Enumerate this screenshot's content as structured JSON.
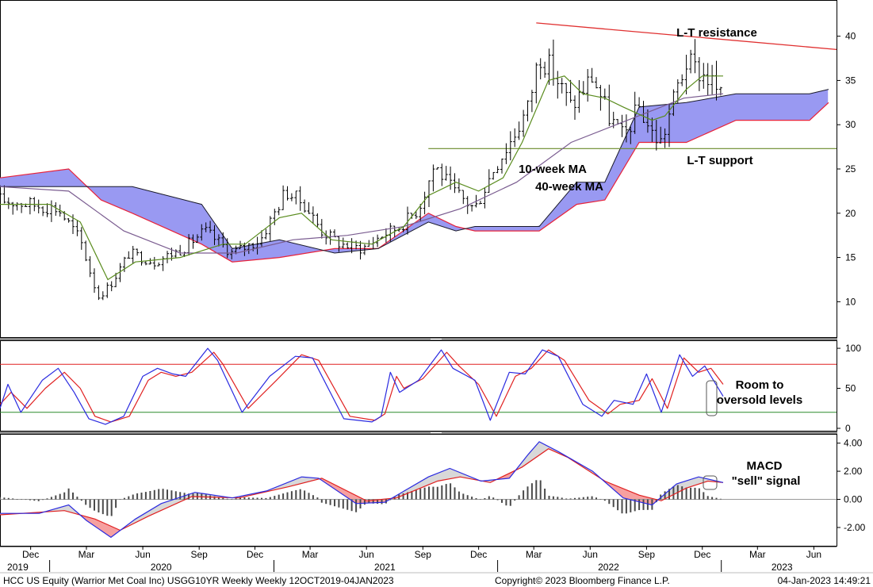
{
  "chart_data": [
    {
      "type": "candlestick",
      "panel": "price",
      "ylim": [
        6,
        44
      ],
      "yticks": [
        "10",
        "15",
        "20",
        "25",
        "30",
        "35",
        "40"
      ],
      "grid": false,
      "x_start": "2019-10-12",
      "x_end": "2023-07-08",
      "price_path": [
        [
          "2019-10-12",
          21.5
        ],
        [
          "2019-12-01",
          21
        ],
        [
          "2020-01-15",
          20.5
        ],
        [
          "2020-02-20",
          17
        ],
        [
          "2020-03-20",
          10.5
        ],
        [
          "2020-04-10",
          12
        ],
        [
          "2020-05-10",
          15.5
        ],
        [
          "2020-06-20",
          14.5
        ],
        [
          "2020-08-05",
          16
        ],
        [
          "2020-09-10",
          18
        ],
        [
          "2020-10-25",
          15.5
        ],
        [
          "2020-12-10",
          17
        ],
        [
          "2021-01-20",
          22.5
        ],
        [
          "2021-02-20",
          21
        ],
        [
          "2021-03-20",
          18
        ],
        [
          "2021-04-20",
          16.5
        ],
        [
          "2021-05-25",
          16
        ],
        [
          "2021-06-25",
          17.5
        ],
        [
          "2021-07-25",
          18.5
        ],
        [
          "2021-08-25",
          20.5
        ],
        [
          "2021-09-20",
          25.5
        ],
        [
          "2021-10-20",
          22.5
        ],
        [
          "2021-11-25",
          20.5
        ],
        [
          "2021-12-25",
          25
        ],
        [
          "2022-01-25",
          28.5
        ],
        [
          "2022-02-20",
          32
        ],
        [
          "2022-03-10",
          38
        ],
        [
          "2022-04-01",
          36
        ],
        [
          "2022-05-01",
          32
        ],
        [
          "2022-06-05",
          35.5
        ],
        [
          "2022-07-01",
          31
        ],
        [
          "2022-07-25",
          28.5
        ],
        [
          "2022-08-20",
          32
        ],
        [
          "2022-09-10",
          29
        ],
        [
          "2022-09-25",
          28
        ],
        [
          "2022-10-20",
          34
        ],
        [
          "2022-11-05",
          37
        ],
        [
          "2022-11-25",
          36
        ],
        [
          "2022-12-15",
          35
        ],
        [
          "2023-01-04",
          32.5
        ]
      ],
      "ma10_path": [
        [
          "2019-10-12",
          21
        ],
        [
          "2020-01-01",
          21
        ],
        [
          "2020-02-20",
          19
        ],
        [
          "2020-04-05",
          12.5
        ],
        [
          "2020-05-20",
          14.5
        ],
        [
          "2020-08-01",
          15
        ],
        [
          "2020-10-10",
          16.5
        ],
        [
          "2020-11-15",
          16.5
        ],
        [
          "2021-01-10",
          19.5
        ],
        [
          "2021-02-15",
          20
        ],
        [
          "2021-04-05",
          17
        ],
        [
          "2021-06-10",
          16.5
        ],
        [
          "2021-08-01",
          18.5
        ],
        [
          "2021-09-10",
          22
        ],
        [
          "2021-10-25",
          23.5
        ],
        [
          "2021-12-01",
          22.5
        ],
        [
          "2022-01-10",
          24
        ],
        [
          "2022-02-10",
          28
        ],
        [
          "2022-03-25",
          35
        ],
        [
          "2022-04-20",
          35.5
        ],
        [
          "2022-05-20",
          33.5
        ],
        [
          "2022-06-25",
          33
        ],
        [
          "2022-07-25",
          32
        ],
        [
          "2022-09-10",
          30.5
        ],
        [
          "2022-10-01",
          31
        ],
        [
          "2022-11-05",
          34
        ],
        [
          "2022-12-01",
          35.5
        ],
        [
          "2023-01-04",
          35.5
        ]
      ],
      "ma40_path": [
        [
          "2019-10-12",
          23
        ],
        [
          "2020-02-01",
          22.5
        ],
        [
          "2020-05-01",
          18
        ],
        [
          "2020-08-01",
          15.5
        ],
        [
          "2020-11-01",
          15.5
        ],
        [
          "2021-02-01",
          17
        ],
        [
          "2021-05-01",
          17.5
        ],
        [
          "2021-08-01",
          18.5
        ],
        [
          "2021-11-01",
          20.5
        ],
        [
          "2022-02-01",
          23.5
        ],
        [
          "2022-05-01",
          28
        ],
        [
          "2022-08-01",
          30.5
        ],
        [
          "2022-11-01",
          33
        ],
        [
          "2023-01-04",
          33.5
        ]
      ],
      "cloud_a": [
        [
          "2019-10-12",
          23
        ],
        [
          "2020-03-25",
          23
        ],
        [
          "2020-05-15",
          23
        ],
        [
          "2020-09-05",
          21
        ],
        [
          "2020-10-25",
          16
        ],
        [
          "2021-01-10",
          17
        ],
        [
          "2021-04-10",
          15.5
        ],
        [
          "2021-06-20",
          16
        ],
        [
          "2021-09-10",
          19
        ],
        [
          "2021-10-25",
          18
        ],
        [
          "2021-11-25",
          18.5
        ],
        [
          "2022-03-10",
          18.5
        ],
        [
          "2022-05-10",
          23.5
        ],
        [
          "2022-06-25",
          23.5
        ],
        [
          "2022-08-20",
          32
        ],
        [
          "2022-11-05",
          32.5
        ],
        [
          "2023-01-25",
          33.5
        ],
        [
          "2023-05-25",
          33.5
        ],
        [
          "2023-06-25",
          34
        ]
      ],
      "cloud_b": [
        [
          "2019-10-12",
          24
        ],
        [
          "2020-02-01",
          25
        ],
        [
          "2020-03-25",
          21.5
        ],
        [
          "2020-05-15",
          20
        ],
        [
          "2020-09-05",
          16.5
        ],
        [
          "2020-10-25",
          14.5
        ],
        [
          "2021-01-10",
          15
        ],
        [
          "2021-04-10",
          16
        ],
        [
          "2021-06-20",
          16
        ],
        [
          "2021-09-10",
          20
        ],
        [
          "2021-10-25",
          18.5
        ],
        [
          "2021-11-25",
          18
        ],
        [
          "2022-03-10",
          18
        ],
        [
          "2022-05-10",
          21
        ],
        [
          "2022-06-25",
          21.5
        ],
        [
          "2022-08-20",
          28
        ],
        [
          "2022-11-05",
          28
        ],
        [
          "2023-01-25",
          30.5
        ],
        [
          "2023-05-25",
          30.5
        ],
        [
          "2023-06-25",
          32.5
        ]
      ],
      "resistance_line": [
        [
          "2022-03-05",
          41.5
        ],
        [
          "2023-07-08",
          38.5
        ]
      ],
      "support_line": [
        [
          "2021-09-10",
          27.3
        ],
        [
          "2023-07-08",
          27.3
        ]
      ],
      "annotations": [
        {
          "text": "L-T resistance",
          "x": "2022-12-10",
          "y": 41.8
        },
        {
          "text": "L-T support",
          "x": "2022-12-20",
          "y": 25.8
        },
        {
          "text": "10-week MA",
          "x": "2022-03-25",
          "y": 25.3
        },
        {
          "text": "40-week MA",
          "x": "2022-04-10",
          "y": 23.3
        }
      ]
    },
    {
      "type": "line",
      "panel": "oscillator",
      "ylim": [
        -3,
        109
      ],
      "yticks": [
        "0",
        "50",
        "100"
      ],
      "overbought": 80,
      "oversold": 20,
      "blue_path": [
        [
          "2019-10-12",
          25
        ],
        [
          "2019-10-25",
          55
        ],
        [
          "2019-11-15",
          20
        ],
        [
          "2019-12-20",
          60
        ],
        [
          "2020-01-15",
          75
        ],
        [
          "2020-02-10",
          45
        ],
        [
          "2020-03-05",
          12
        ],
        [
          "2020-04-01",
          5
        ],
        [
          "2020-05-01",
          15
        ],
        [
          "2020-06-01",
          65
        ],
        [
          "2020-06-25",
          75
        ],
        [
          "2020-07-20",
          68
        ],
        [
          "2020-08-10",
          65
        ],
        [
          "2020-09-15",
          100
        ],
        [
          "2020-10-01",
          85
        ],
        [
          "2020-11-10",
          20
        ],
        [
          "2020-12-25",
          65
        ],
        [
          "2021-02-05",
          90
        ],
        [
          "2021-03-05",
          88
        ],
        [
          "2021-04-25",
          12
        ],
        [
          "2021-06-10",
          8
        ],
        [
          "2021-06-25",
          15
        ],
        [
          "2021-07-10",
          70
        ],
        [
          "2021-07-25",
          45
        ],
        [
          "2021-08-25",
          60
        ],
        [
          "2021-10-01",
          98
        ],
        [
          "2021-10-20",
          75
        ],
        [
          "2021-11-25",
          60
        ],
        [
          "2021-12-20",
          10
        ],
        [
          "2022-01-20",
          70
        ],
        [
          "2022-02-15",
          68
        ],
        [
          "2022-03-15",
          98
        ],
        [
          "2022-04-10",
          90
        ],
        [
          "2022-05-20",
          30
        ],
        [
          "2022-06-20",
          15
        ],
        [
          "2022-07-10",
          35
        ],
        [
          "2022-08-10",
          30
        ],
        [
          "2022-09-01",
          68
        ],
        [
          "2022-09-25",
          20
        ],
        [
          "2022-10-25",
          92
        ],
        [
          "2022-11-15",
          65
        ],
        [
          "2022-12-05",
          78
        ],
        [
          "2023-01-04",
          40
        ]
      ],
      "red_path": [
        [
          "2019-10-12",
          30
        ],
        [
          "2019-10-30",
          45
        ],
        [
          "2019-11-25",
          25
        ],
        [
          "2019-12-25",
          50
        ],
        [
          "2020-01-25",
          70
        ],
        [
          "2020-02-20",
          50
        ],
        [
          "2020-03-15",
          15
        ],
        [
          "2020-04-10",
          8
        ],
        [
          "2020-05-10",
          15
        ],
        [
          "2020-06-10",
          60
        ],
        [
          "2020-07-01",
          70
        ],
        [
          "2020-07-25",
          65
        ],
        [
          "2020-08-20",
          70
        ],
        [
          "2020-09-25",
          95
        ],
        [
          "2020-10-10",
          80
        ],
        [
          "2020-11-20",
          25
        ],
        [
          "2021-01-05",
          60
        ],
        [
          "2021-02-15",
          92
        ],
        [
          "2021-03-15",
          85
        ],
        [
          "2021-05-05",
          15
        ],
        [
          "2021-06-15",
          10
        ],
        [
          "2021-07-01",
          18
        ],
        [
          "2021-07-20",
          65
        ],
        [
          "2021-08-01",
          50
        ],
        [
          "2021-09-01",
          62
        ],
        [
          "2021-10-10",
          95
        ],
        [
          "2021-10-30",
          78
        ],
        [
          "2021-12-01",
          55
        ],
        [
          "2021-12-30",
          15
        ],
        [
          "2022-01-30",
          65
        ],
        [
          "2022-02-25",
          75
        ],
        [
          "2022-03-25",
          98
        ],
        [
          "2022-04-20",
          85
        ],
        [
          "2022-05-30",
          35
        ],
        [
          "2022-06-30",
          18
        ],
        [
          "2022-07-20",
          30
        ],
        [
          "2022-08-20",
          35
        ],
        [
          "2022-09-10",
          62
        ],
        [
          "2022-10-05",
          25
        ],
        [
          "2022-11-01",
          88
        ],
        [
          "2022-11-25",
          70
        ],
        [
          "2022-12-15",
          75
        ],
        [
          "2023-01-04",
          55
        ]
      ],
      "annotation_lines": [
        "Room to",
        "oversold levels"
      ]
    },
    {
      "type": "line",
      "panel": "macd",
      "ylim": [
        -3.3,
        4.6
      ],
      "yticks": [
        "4.00",
        "2.00",
        "0.00",
        "-2.00"
      ],
      "macd_path": [
        [
          "2019-10-12",
          -1.0
        ],
        [
          "2019-12-15",
          -1.0
        ],
        [
          "2020-02-01",
          -0.4
        ],
        [
          "2020-03-01",
          -1.5
        ],
        [
          "2020-04-10",
          -2.7
        ],
        [
          "2020-05-20",
          -1.4
        ],
        [
          "2020-07-01",
          -0.3
        ],
        [
          "2020-08-25",
          0.5
        ],
        [
          "2020-10-25",
          0.1
        ],
        [
          "2020-12-20",
          0.6
        ],
        [
          "2021-02-15",
          1.6
        ],
        [
          "2021-03-15",
          1.5
        ],
        [
          "2021-05-15",
          -0.3
        ],
        [
          "2021-07-01",
          -0.2
        ],
        [
          "2021-09-10",
          1.6
        ],
        [
          "2021-10-15",
          2.2
        ],
        [
          "2021-12-05",
          1.3
        ],
        [
          "2022-01-20",
          1.5
        ],
        [
          "2022-02-20",
          3.2
        ],
        [
          "2022-03-10",
          4.1
        ],
        [
          "2022-04-10",
          3.4
        ],
        [
          "2022-06-05",
          2.0
        ],
        [
          "2022-07-25",
          0.1
        ],
        [
          "2022-09-10",
          -0.4
        ],
        [
          "2022-10-20",
          1.1
        ],
        [
          "2022-11-25",
          1.6
        ],
        [
          "2023-01-04",
          1.2
        ]
      ],
      "signal_path": [
        [
          "2019-10-12",
          -1.1
        ],
        [
          "2020-01-25",
          -0.8
        ],
        [
          "2020-03-15",
          -1.4
        ],
        [
          "2020-04-25",
          -2.2
        ],
        [
          "2020-06-10",
          -1.2
        ],
        [
          "2020-08-20",
          0.2
        ],
        [
          "2020-11-05",
          0.1
        ],
        [
          "2021-01-25",
          0.9
        ],
        [
          "2021-03-20",
          1.5
        ],
        [
          "2021-06-01",
          -0.1
        ],
        [
          "2021-07-20",
          0.1
        ],
        [
          "2021-09-25",
          1.3
        ],
        [
          "2021-11-01",
          1.6
        ],
        [
          "2021-12-20",
          1.2
        ],
        [
          "2022-02-10",
          2.3
        ],
        [
          "2022-03-25",
          3.6
        ],
        [
          "2022-04-25",
          3.0
        ],
        [
          "2022-06-25",
          1.3
        ],
        [
          "2022-08-20",
          0.3
        ],
        [
          "2022-09-25",
          -0.1
        ],
        [
          "2022-11-05",
          0.8
        ],
        [
          "2022-12-10",
          1.3
        ],
        [
          "2023-01-04",
          1.2
        ]
      ],
      "annotation_lines": [
        "MACD",
        "\"sell\" signal"
      ]
    }
  ],
  "x_axis": {
    "month_labels": [
      {
        "text": "Dec",
        "date": "2019-12-01"
      },
      {
        "text": "Mar",
        "date": "2020-03-01"
      },
      {
        "text": "Jun",
        "date": "2020-06-01"
      },
      {
        "text": "Sep",
        "date": "2020-09-01"
      },
      {
        "text": "Dec",
        "date": "2020-12-01"
      },
      {
        "text": "Mar",
        "date": "2021-03-01"
      },
      {
        "text": "Jun",
        "date": "2021-06-01"
      },
      {
        "text": "Sep",
        "date": "2021-09-01"
      },
      {
        "text": "Dec",
        "date": "2021-12-01"
      },
      {
        "text": "Mar",
        "date": "2022-03-01"
      },
      {
        "text": "Jun",
        "date": "2022-06-01"
      },
      {
        "text": "Sep",
        "date": "2022-09-01"
      },
      {
        "text": "Dec",
        "date": "2022-12-01"
      },
      {
        "text": "Mar",
        "date": "2023-03-01"
      },
      {
        "text": "Jun",
        "date": "2023-06-01"
      }
    ],
    "year_labels": [
      {
        "text": "2019",
        "date": "2019-11-10"
      },
      {
        "text": "2020",
        "date": "2020-07-01"
      },
      {
        "text": "2021",
        "date": "2021-07-01"
      },
      {
        "text": "2022",
        "date": "2022-07-01"
      },
      {
        "text": "2023",
        "date": "2023-04-10"
      }
    ]
  },
  "footer": {
    "left": "HCC US Equity (Warrior Met Coal Inc) USGG10YR Weekly  Weekly 12OCT2019-04JAN2023",
    "center": "Copyright© 2023 Bloomberg Finance L.P.",
    "right": "04-Jan-2023 14:49:21"
  },
  "colors": {
    "cloud_fill": "#9999f2",
    "cloud_red_edge": "#e8223a",
    "price_bars": "#000000",
    "ma10": "#5a8c1e",
    "ma40": "#7a5c90",
    "resistance": "#e03030",
    "support": "#6a8a2a",
    "osc_blue": "#2a2ae0",
    "osc_red": "#e02020",
    "macd_diff_up": "#d8d8d8",
    "macd_diff_down": "#f6a0a0"
  }
}
